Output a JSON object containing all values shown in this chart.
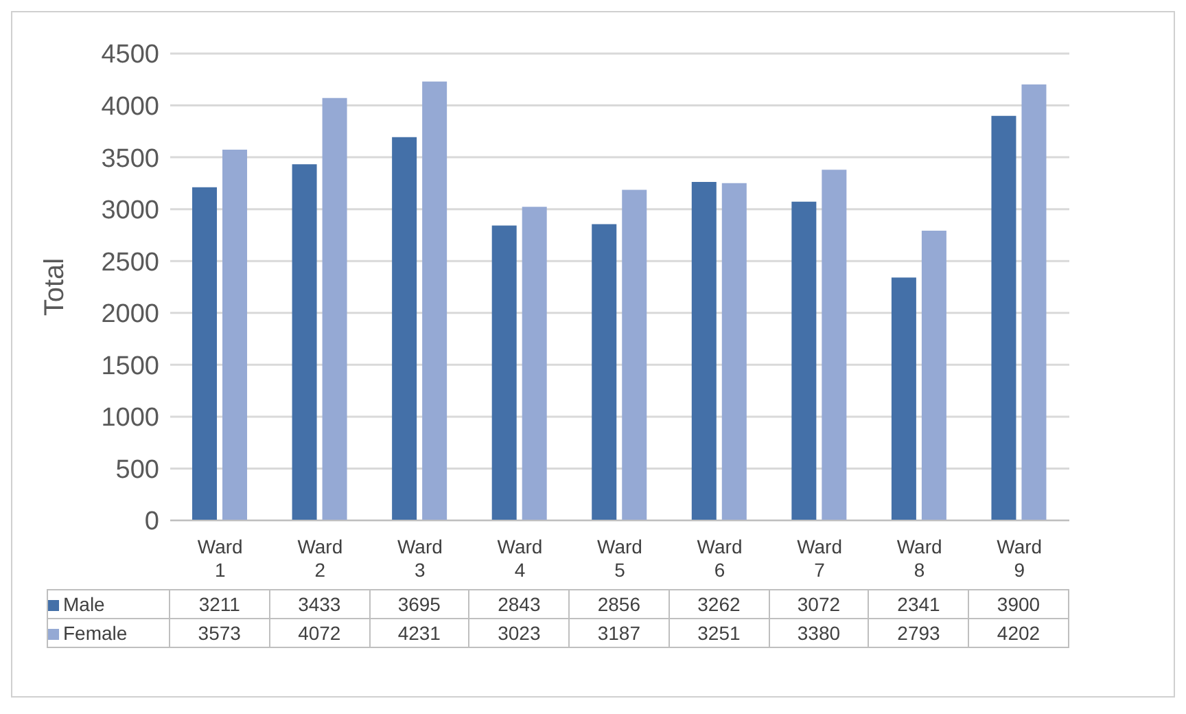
{
  "chart_data": {
    "type": "bar",
    "ylabel": "Total",
    "categories": [
      "Ward 1",
      "Ward 2",
      "Ward 3",
      "Ward 4",
      "Ward 5",
      "Ward 6",
      "Ward 7",
      "Ward 8",
      "Ward 9"
    ],
    "series": [
      {
        "name": "Male",
        "color": "#4470a8",
        "values": [
          3211,
          3433,
          3695,
          2843,
          2856,
          3262,
          3072,
          2341,
          3900
        ]
      },
      {
        "name": "Female",
        "color": "#95a9d4",
        "values": [
          3573,
          4072,
          4231,
          3023,
          3187,
          3251,
          3380,
          2793,
          4202
        ]
      }
    ],
    "ylim": [
      0,
      4500
    ],
    "yticks": [
      0,
      500,
      1000,
      1500,
      2000,
      2500,
      3000,
      3500,
      4000,
      4500
    ],
    "grid": "y",
    "legend": "bottom",
    "data_labels": true
  }
}
